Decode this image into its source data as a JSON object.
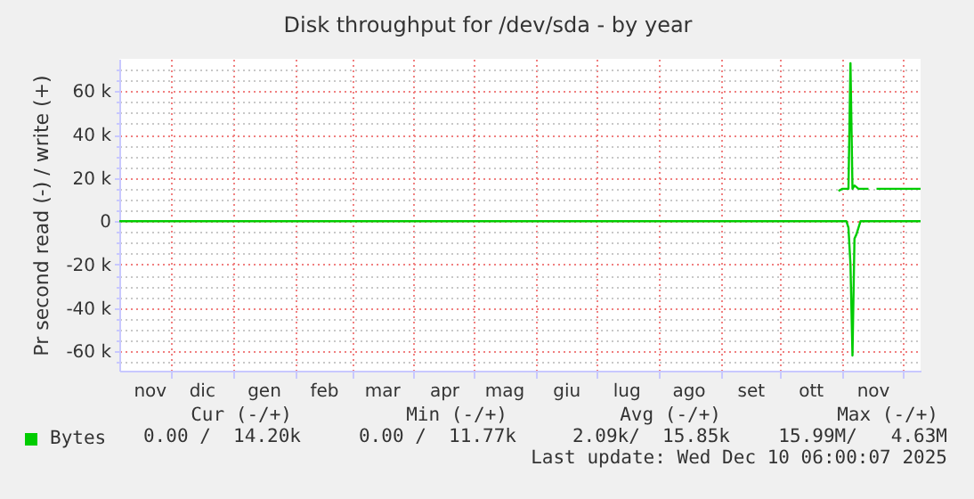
{
  "chart_data": {
    "type": "line",
    "title": "Disk throughput for /dev/sda - by year",
    "ylabel": "Pr second read (-) / write (+)",
    "series": [
      {
        "name": "Bytes",
        "color": "#00cc00",
        "x": [
          "2025-10-30",
          "2025-11-01",
          "2025-11-04",
          "2025-11-05",
          "2025-11-06",
          "2025-11-07",
          "2025-11-09",
          "2025-11-14",
          "2025-11-16",
          "2025-11-18",
          "2025-12-10"
        ],
        "values": [
          14000,
          15000,
          15000,
          73000,
          15000,
          16500,
          15000,
          15000,
          null,
          15000,
          15000
        ]
      },
      {
        "color": "#00cc00",
        "x": [
          "2024-11-05",
          "2025-11-03",
          "2025-11-04",
          "2025-11-05",
          "2025-11-06",
          "2025-11-07",
          "2025-11-08",
          "2025-11-10",
          "2025-12-10"
        ],
        "values": [
          0,
          0,
          -3000,
          -20000,
          -62000,
          -8000,
          -6000,
          0,
          0
        ]
      }
    ],
    "xlim": [
      "2024-11-05",
      "2025-12-10"
    ],
    "xticks": [
      {
        "value": "2024-11-20",
        "label": "nov"
      },
      {
        "value": "2024-12-01",
        "label": null
      },
      {
        "value": "2024-12-16",
        "label": "dic"
      },
      {
        "value": "2025-01-01",
        "label": null
      },
      {
        "value": "2025-01-16",
        "label": "gen"
      },
      {
        "value": "2025-02-01",
        "label": null
      },
      {
        "value": "2025-02-15",
        "label": "feb"
      },
      {
        "value": "2025-03-01",
        "label": null
      },
      {
        "value": "2025-03-16",
        "label": "mar"
      },
      {
        "value": "2025-04-01",
        "label": null
      },
      {
        "value": "2025-04-16",
        "label": "apr"
      },
      {
        "value": "2025-05-01",
        "label": null
      },
      {
        "value": "2025-05-16",
        "label": "mag"
      },
      {
        "value": "2025-06-01",
        "label": null
      },
      {
        "value": "2025-06-16",
        "label": "giu"
      },
      {
        "value": "2025-07-01",
        "label": null
      },
      {
        "value": "2025-07-16",
        "label": "lug"
      },
      {
        "value": "2025-08-01",
        "label": null
      },
      {
        "value": "2025-08-16",
        "label": "ago"
      },
      {
        "value": "2025-09-01",
        "label": null
      },
      {
        "value": "2025-09-16",
        "label": "set"
      },
      {
        "value": "2025-10-01",
        "label": null
      },
      {
        "value": "2025-10-16",
        "label": "ott"
      },
      {
        "value": "2025-11-01",
        "label": null
      },
      {
        "value": "2025-11-16",
        "label": "nov"
      },
      {
        "value": "2025-12-01",
        "label": null
      }
    ],
    "ylim": [
      -69000,
      75000
    ],
    "yticks": [
      {
        "value": -65000,
        "label": null
      },
      {
        "value": -60000,
        "label": "-60 k"
      },
      {
        "value": -55000,
        "label": null
      },
      {
        "value": -50000,
        "label": null
      },
      {
        "value": -45000,
        "label": null
      },
      {
        "value": -40000,
        "label": "-40 k"
      },
      {
        "value": -35000,
        "label": null
      },
      {
        "value": -30000,
        "label": null
      },
      {
        "value": -25000,
        "label": null
      },
      {
        "value": -20000,
        "label": "-20 k"
      },
      {
        "value": -15000,
        "label": null
      },
      {
        "value": -10000,
        "label": null
      },
      {
        "value": -5000,
        "label": null
      },
      {
        "value": 0,
        "label": "0"
      },
      {
        "value": 5000,
        "label": null
      },
      {
        "value": 10000,
        "label": null
      },
      {
        "value": 15000,
        "label": null
      },
      {
        "value": 20000,
        "label": "20 k"
      },
      {
        "value": 25000,
        "label": null
      },
      {
        "value": 30000,
        "label": null
      },
      {
        "value": 35000,
        "label": null
      },
      {
        "value": 40000,
        "label": "40 k"
      },
      {
        "value": 45000,
        "label": null
      },
      {
        "value": 50000,
        "label": null
      },
      {
        "value": 55000,
        "label": null
      },
      {
        "value": 60000,
        "label": "60 k"
      },
      {
        "value": 65000,
        "label": null
      },
      {
        "value": 70000,
        "label": null
      }
    ],
    "grid": true,
    "legend": "bottom left",
    "annotations": [
      "Cur (-/+)",
      "Min (-/+)",
      "Avg (-/+)",
      "Max (-/+)",
      "0.00 /  14.20k",
      "0.00 /  11.77k",
      "2.09k/  15.85k",
      "15.99M/   4.63M",
      "Last update: Wed Dec 10 06:00:07 2025"
    ]
  }
}
